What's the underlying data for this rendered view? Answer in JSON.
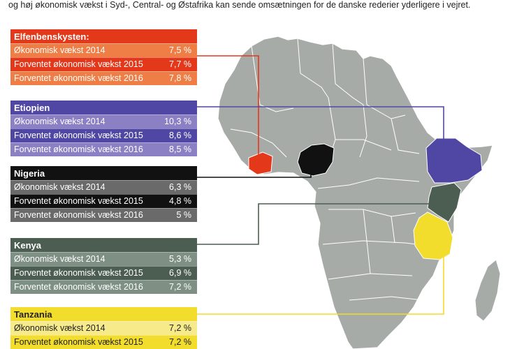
{
  "intro": "og høj økonomisk vækst i Syd-, Central- og Østafrika kan sende omsætningen for de danske rederier yderligere i vejret.",
  "colors": {
    "map_land": "#a7aba8",
    "map_border": "#ffffff",
    "elfenbenskysten": "#e4381b",
    "etiopien": "#5047a4",
    "nigeria": "#111111",
    "kenya": "#4c5e52",
    "tanzania": "#f2dc2c"
  },
  "countries": [
    {
      "key": "civ",
      "name": "Elfenbenskysten:",
      "rows": [
        {
          "label": "Økonomisk vækst 2014",
          "value": "7,5 %"
        },
        {
          "label": "Forventet økonomisk vækst 2015",
          "value": "7,7 %"
        },
        {
          "label": "Forventet økonomisk vækst 2016",
          "value": "7,8 %"
        }
      ]
    },
    {
      "key": "eth",
      "name": "Etiopien",
      "rows": [
        {
          "label": "Økonomisk vækst 2014",
          "value": "10,3 %"
        },
        {
          "label": "Forventet økonomisk vækst 2015",
          "value": "8,6 %"
        },
        {
          "label": "Forventet økonomisk vækst 2016",
          "value": "8,5 %"
        }
      ]
    },
    {
      "key": "nga",
      "name": "Nigeria",
      "rows": [
        {
          "label": "Økonomisk vækst 2014",
          "value": "6,3 %"
        },
        {
          "label": "Forventet økonomisk vækst 2015",
          "value": "4,8 %"
        },
        {
          "label": "Forventet økonomisk vækst 2016",
          "value": "5 %"
        }
      ]
    },
    {
      "key": "ken",
      "name": "Kenya",
      "rows": [
        {
          "label": "Økonomisk vækst 2014",
          "value": "5,3 %"
        },
        {
          "label": "Forventet økonomisk vækst 2015",
          "value": "6,9 %"
        },
        {
          "label": "Forventet økonomisk vækst 2016",
          "value": "7,2 %"
        }
      ]
    },
    {
      "key": "tza",
      "name": "Tanzania",
      "rows": [
        {
          "label": "Økonomisk vækst 2014",
          "value": "7,2 %"
        },
        {
          "label": "Forventet økonomisk vækst 2015",
          "value": "7,2 %"
        }
      ]
    }
  ]
}
